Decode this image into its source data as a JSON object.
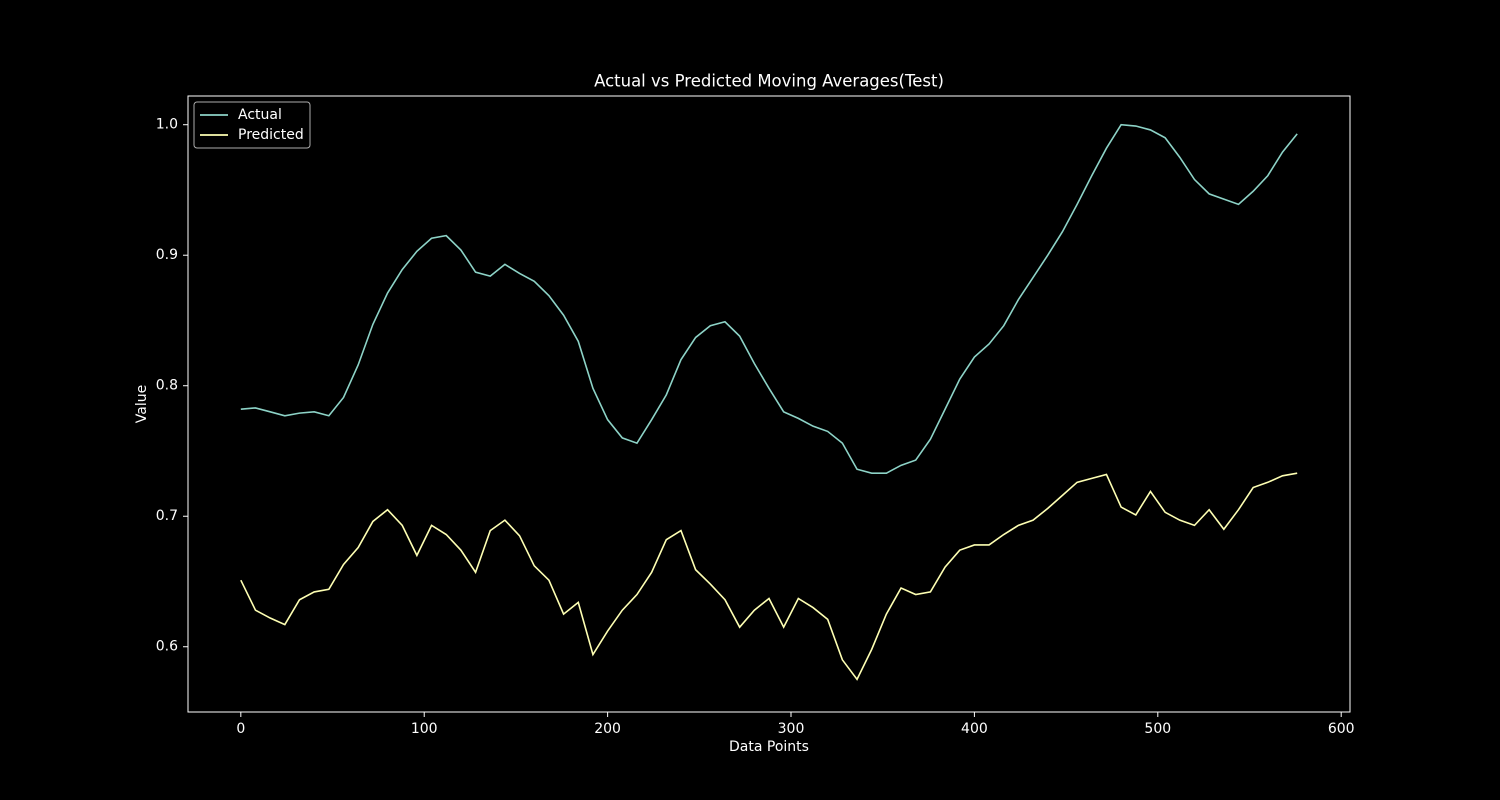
{
  "chart_data": {
    "type": "line",
    "title": "Actual vs Predicted Moving Averages(Test)",
    "x_label": "Data Points",
    "y_label": "Value",
    "x": [
      0,
      8,
      16,
      24,
      32,
      40,
      48,
      56,
      64,
      72,
      80,
      88,
      96,
      104,
      112,
      120,
      128,
      136,
      144,
      152,
      160,
      168,
      176,
      184,
      192,
      200,
      208,
      216,
      224,
      232,
      240,
      248,
      256,
      264,
      272,
      280,
      288,
      296,
      304,
      312,
      320,
      328,
      336,
      344,
      352,
      360,
      368,
      376,
      384,
      392,
      400,
      408,
      416,
      424,
      432,
      440,
      448,
      456,
      464,
      472,
      480,
      488,
      496,
      504,
      512,
      520,
      528,
      536,
      544,
      552,
      560,
      568,
      576
    ],
    "series": [
      {
        "name": "Actual",
        "color": "#8dd3c7",
        "values": [
          0.782,
          0.783,
          0.78,
          0.777,
          0.779,
          0.78,
          0.777,
          0.791,
          0.816,
          0.847,
          0.871,
          0.889,
          0.903,
          0.913,
          0.915,
          0.904,
          0.887,
          0.884,
          0.893,
          0.886,
          0.88,
          0.869,
          0.854,
          0.834,
          0.798,
          0.774,
          0.76,
          0.756,
          0.774,
          0.793,
          0.82,
          0.837,
          0.846,
          0.849,
          0.838,
          0.817,
          0.798,
          0.78,
          0.775,
          0.769,
          0.765,
          0.756,
          0.736,
          0.733,
          0.733,
          0.739,
          0.743,
          0.759,
          0.782,
          0.805,
          0.822,
          0.832,
          0.846,
          0.866,
          0.883,
          0.9,
          0.918,
          0.939,
          0.961,
          0.982,
          1.0,
          0.999,
          0.996,
          0.99,
          0.975,
          0.958,
          0.947,
          0.943,
          0.939,
          0.949,
          0.961,
          0.979,
          0.993
        ]
      },
      {
        "name": "Predicted",
        "color": "#feffb3",
        "values": [
          0.651,
          0.628,
          0.622,
          0.617,
          0.636,
          0.642,
          0.644,
          0.663,
          0.676,
          0.696,
          0.705,
          0.693,
          0.67,
          0.693,
          0.686,
          0.674,
          0.657,
          0.689,
          0.697,
          0.685,
          0.662,
          0.651,
          0.625,
          0.634,
          0.594,
          0.612,
          0.628,
          0.64,
          0.657,
          0.682,
          0.689,
          0.659,
          0.648,
          0.636,
          0.615,
          0.628,
          0.637,
          0.615,
          0.637,
          0.63,
          0.621,
          0.59,
          0.575,
          0.598,
          0.625,
          0.645,
          0.64,
          0.642,
          0.661,
          0.674,
          0.678,
          0.678,
          0.686,
          0.693,
          0.697,
          0.706,
          0.716,
          0.726,
          0.729,
          0.732,
          0.707,
          0.701,
          0.719,
          0.703,
          0.697,
          0.693,
          0.705,
          0.69,
          0.705,
          0.722,
          0.726,
          0.731,
          0.733
        ]
      }
    ],
    "xlim": [
      -28.8,
      604.8
    ],
    "ylim": [
      0.55,
      1.022
    ],
    "xticks": [
      0,
      100,
      200,
      300,
      400,
      500,
      600
    ],
    "yticks": [
      0.6,
      0.7,
      0.8,
      0.9,
      {
        "value": 1,
        "label": "1.0"
      }
    ],
    "grid": false,
    "legend": "upper-left"
  }
}
